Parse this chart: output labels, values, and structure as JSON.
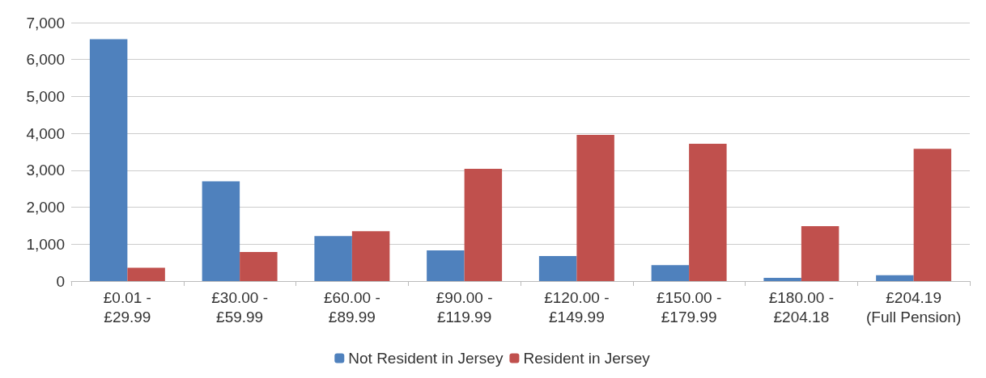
{
  "chart_data": {
    "type": "bar",
    "categories": [
      "£0.01 -\n£29.99",
      "£30.00 -\n£59.99",
      "£60.00 -\n£89.99",
      "£90.00 -\n£119.99",
      "£120.00 -\n£149.99",
      "£150.00 -\n£179.99",
      "£180.00 -\n£204.18",
      "£204.19\n(Full Pension)"
    ],
    "series": [
      {
        "name": "Not Resident in Jersey",
        "color": "#4f81bd",
        "values": [
          6550,
          2700,
          1220,
          830,
          680,
          430,
          90,
          160
        ]
      },
      {
        "name": "Resident in Jersey",
        "color": "#c0504d",
        "values": [
          360,
          790,
          1350,
          3040,
          3960,
          3720,
          1490,
          3580
        ]
      }
    ],
    "ylim": [
      0,
      7000
    ],
    "yticks": [
      {
        "value": 0,
        "label": "0"
      },
      {
        "value": 1000,
        "label": "1,000"
      },
      {
        "value": 2000,
        "label": "2,000"
      },
      {
        "value": 3000,
        "label": "3,000"
      },
      {
        "value": 4000,
        "label": "4,000"
      },
      {
        "value": 5000,
        "label": "5,000"
      },
      {
        "value": 6000,
        "label": "6,000"
      },
      {
        "value": 7000,
        "label": "7,000"
      }
    ],
    "grid": "y",
    "legend": "bottom"
  }
}
